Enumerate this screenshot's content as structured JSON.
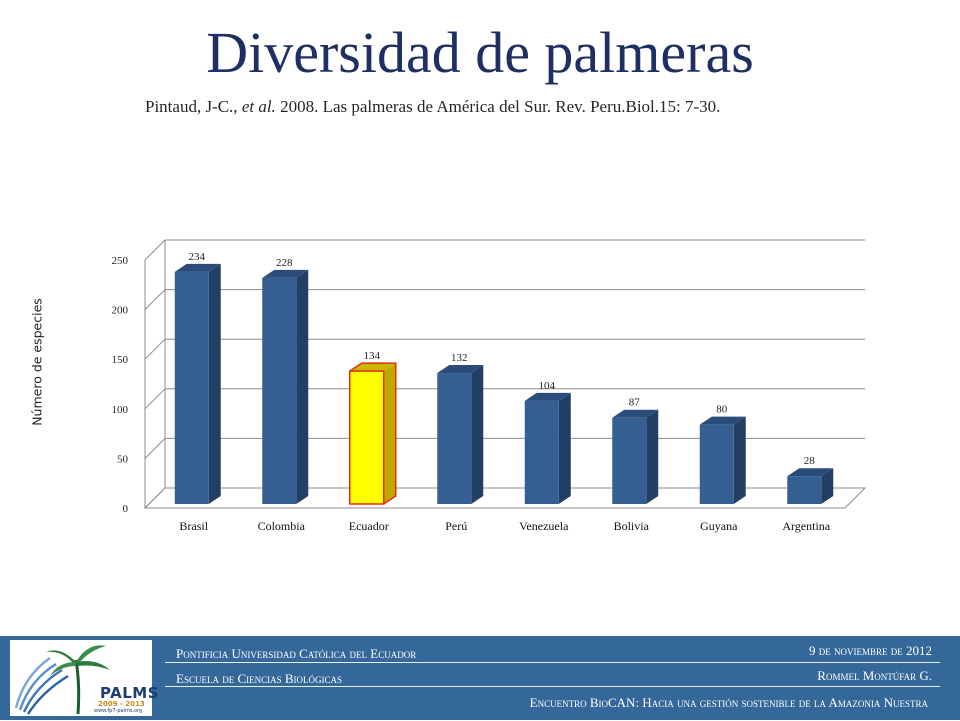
{
  "slide": {
    "title": "Diversidad de palmeras",
    "citation_pre": "Pintaud, J-C., ",
    "citation_etal": "et al.",
    "citation_post": " 2008. Las palmeras de América del Sur. Rev. Peru.Biol.15: 7-30."
  },
  "chart_data": {
    "type": "bar",
    "title": "",
    "xlabel": "",
    "ylabel": "Número de especies",
    "categories": [
      "Brasil",
      "Colombia",
      "Ecuador",
      "Perú",
      "Venezuela",
      "Bolivia",
      "Guyana",
      "Argentina"
    ],
    "values": [
      234,
      228,
      134,
      132,
      104,
      87,
      80,
      28
    ],
    "data_labels": [
      "234",
      "228",
      "134",
      "132",
      "104",
      "87",
      "80",
      "28"
    ],
    "highlighted_category": "Ecuador",
    "ylim": [
      0,
      250
    ],
    "yticks": [
      0,
      50,
      100,
      150,
      200,
      250
    ],
    "ytick_labels": [
      "0",
      "50",
      "100",
      "150",
      "200",
      "250"
    ],
    "grid": true,
    "style": "3d-column",
    "colors": {
      "bar": "#355e93",
      "bar_top": "#2a4c7a",
      "bar_side": "#243f66",
      "highlight": "#ffff00",
      "highlight_top": "#c9b800",
      "highlight_side": "#bfa800",
      "highlight_border": "#e82b13"
    }
  },
  "footer": {
    "university": "Pontificia Universidad Católica del Ecuador",
    "school": "Escuela de Ciencias  Biológicas",
    "date": "9 de noviembre de 2012",
    "author": "Rommel Montúfar G.",
    "event": "Encuentro BioCAN: Hacia una gestión sostenible de la Amazonia Nuestra",
    "logo_text": "PALMS",
    "logo_years": "2009 - 2013",
    "logo_url": "www.fp7-palms.org",
    "background": "#34689a"
  }
}
